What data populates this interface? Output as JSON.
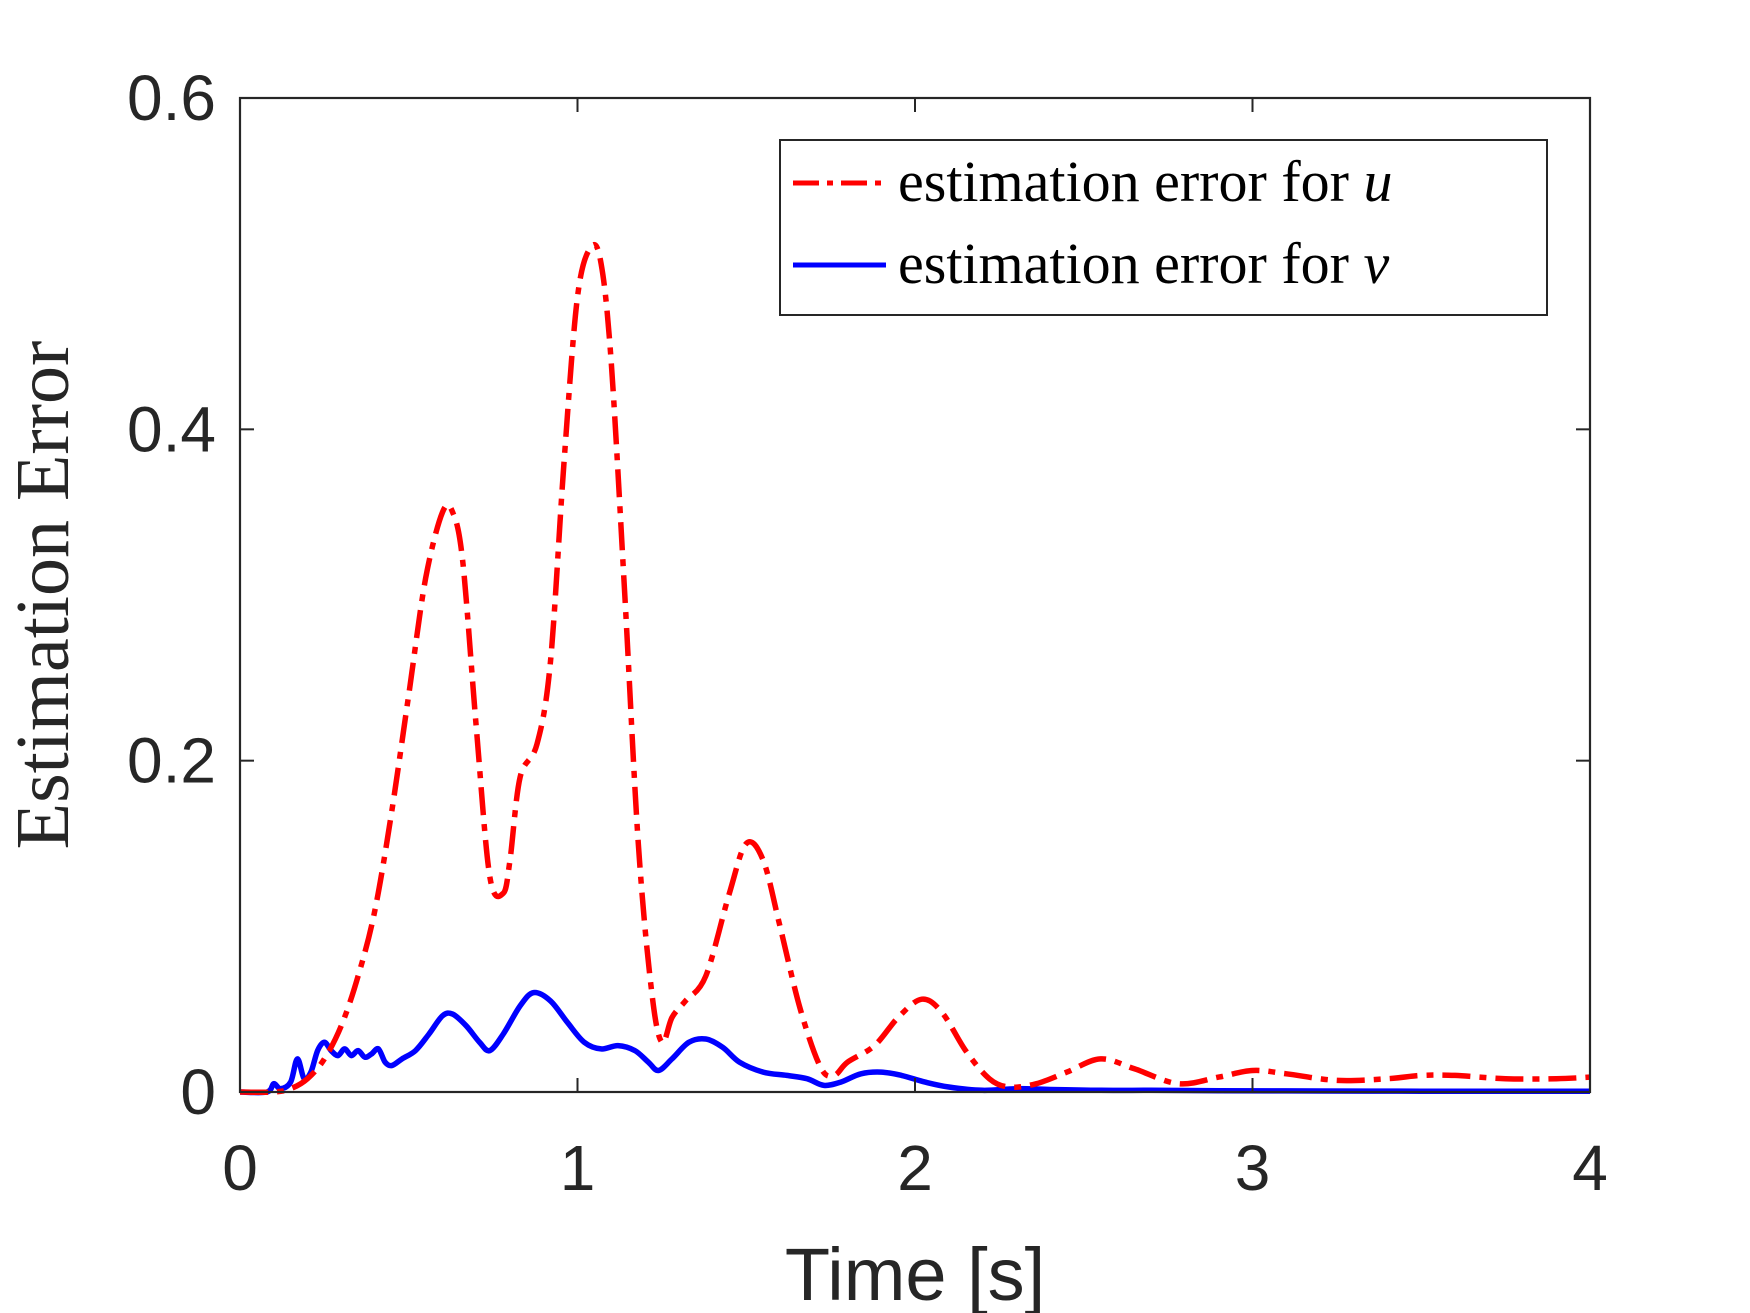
{
  "chart_data": {
    "type": "line",
    "xlabel": "Time [s]",
    "ylabel": "Estimation Error",
    "xlim": [
      0,
      4
    ],
    "ylim": [
      0,
      0.6
    ],
    "xticks": [
      "0",
      "1",
      "2",
      "3",
      "4"
    ],
    "yticks": [
      "0",
      "0.2",
      "0.4",
      "0.6"
    ],
    "grid": false,
    "legend_position": "top-right",
    "series": [
      {
        "name": "estimation error for u",
        "label_prefix": "estimation error for ",
        "label_var": "u",
        "color": "#ff0000",
        "style": "dash-dot",
        "x": [
          0,
          0.1,
          0.15,
          0.2,
          0.25,
          0.3,
          0.35,
          0.4,
          0.45,
          0.5,
          0.55,
          0.6,
          0.63,
          0.66,
          0.7,
          0.74,
          0.78,
          0.8,
          0.83,
          0.88,
          0.92,
          0.96,
          1.0,
          1.04,
          1.07,
          1.1,
          1.14,
          1.18,
          1.22,
          1.25,
          1.28,
          1.32,
          1.38,
          1.45,
          1.5,
          1.55,
          1.6,
          1.66,
          1.72,
          1.76,
          1.8,
          1.88,
          1.95,
          2.02,
          2.08,
          2.15,
          2.22,
          2.28,
          2.36,
          2.45,
          2.55,
          2.65,
          2.78,
          2.9,
          3.0,
          3.1,
          3.25,
          3.4,
          3.5,
          3.6,
          3.75,
          3.9,
          4.0
        ],
        "y": [
          0,
          0.0,
          0.002,
          0.008,
          0.02,
          0.04,
          0.07,
          0.11,
          0.17,
          0.24,
          0.31,
          0.35,
          0.35,
          0.32,
          0.22,
          0.13,
          0.12,
          0.14,
          0.19,
          0.21,
          0.26,
          0.38,
          0.48,
          0.51,
          0.5,
          0.44,
          0.3,
          0.15,
          0.06,
          0.03,
          0.045,
          0.055,
          0.07,
          0.12,
          0.15,
          0.14,
          0.1,
          0.05,
          0.015,
          0.01,
          0.018,
          0.028,
          0.045,
          0.056,
          0.048,
          0.025,
          0.008,
          0.003,
          0.005,
          0.012,
          0.02,
          0.014,
          0.005,
          0.009,
          0.013,
          0.011,
          0.007,
          0.008,
          0.01,
          0.01,
          0.008,
          0.008,
          0.009
        ]
      },
      {
        "name": "estimation error for v",
        "label_prefix": "estimation error for ",
        "label_var": "v",
        "color": "#0000ff",
        "style": "solid",
        "x": [
          0,
          0.08,
          0.1,
          0.12,
          0.15,
          0.17,
          0.19,
          0.21,
          0.23,
          0.25,
          0.27,
          0.29,
          0.31,
          0.33,
          0.35,
          0.37,
          0.39,
          0.41,
          0.43,
          0.45,
          0.48,
          0.52,
          0.56,
          0.6,
          0.63,
          0.67,
          0.71,
          0.74,
          0.78,
          0.83,
          0.87,
          0.92,
          0.97,
          1.02,
          1.07,
          1.12,
          1.17,
          1.21,
          1.24,
          1.28,
          1.33,
          1.38,
          1.43,
          1.48,
          1.55,
          1.62,
          1.68,
          1.73,
          1.78,
          1.84,
          1.9,
          1.96,
          2.03,
          2.1,
          2.2,
          2.3,
          2.4,
          2.55,
          2.7,
          2.9,
          3.2,
          3.5,
          3.8,
          4.0
        ],
        "y": [
          0,
          0.0,
          0.005,
          0.002,
          0.006,
          0.02,
          0.008,
          0.012,
          0.025,
          0.03,
          0.025,
          0.022,
          0.026,
          0.022,
          0.025,
          0.021,
          0.023,
          0.026,
          0.018,
          0.016,
          0.02,
          0.025,
          0.035,
          0.046,
          0.047,
          0.04,
          0.03,
          0.025,
          0.035,
          0.052,
          0.06,
          0.055,
          0.042,
          0.03,
          0.026,
          0.028,
          0.025,
          0.018,
          0.013,
          0.02,
          0.03,
          0.032,
          0.027,
          0.018,
          0.012,
          0.01,
          0.008,
          0.004,
          0.006,
          0.011,
          0.012,
          0.01,
          0.006,
          0.003,
          0.001,
          0.002,
          0.0015,
          0.001,
          0.001,
          0.0008,
          0.0006,
          0.0005,
          0.0005,
          0.0005
        ]
      }
    ]
  }
}
